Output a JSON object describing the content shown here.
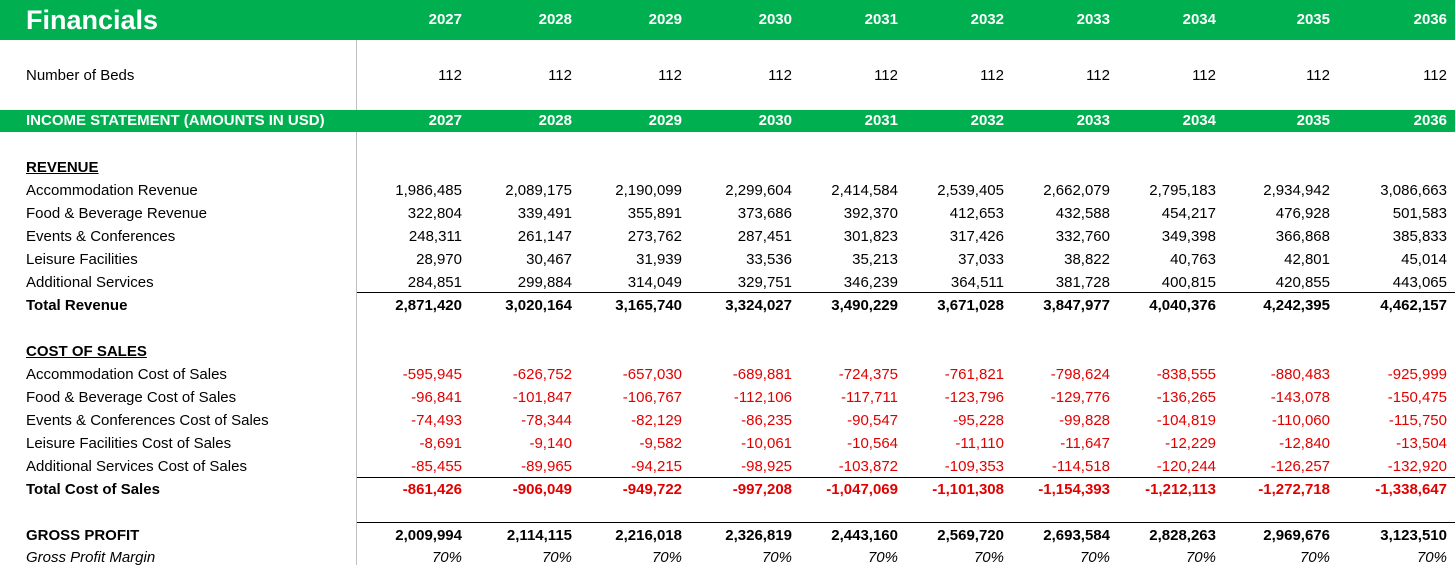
{
  "title": "Financials",
  "years": [
    "2027",
    "2028",
    "2029",
    "2030",
    "2031",
    "2032",
    "2033",
    "2034",
    "2035",
    "2036"
  ],
  "beds": {
    "label": "Number of Beds",
    "values": [
      "112",
      "112",
      "112",
      "112",
      "112",
      "112",
      "112",
      "112",
      "112",
      "112"
    ]
  },
  "income_header": "INCOME STATEMENT (AMOUNTS IN USD)",
  "revenue": {
    "heading": "REVENUE",
    "rows": [
      {
        "label": "Accommodation Revenue",
        "values": [
          "1,986,485",
          "2,089,175",
          "2,190,099",
          "2,299,604",
          "2,414,584",
          "2,539,405",
          "2,662,079",
          "2,795,183",
          "2,934,942",
          "3,086,663"
        ]
      },
      {
        "label": "Food & Beverage Revenue",
        "values": [
          "322,804",
          "339,491",
          "355,891",
          "373,686",
          "392,370",
          "412,653",
          "432,588",
          "454,217",
          "476,928",
          "501,583"
        ]
      },
      {
        "label": "Events & Conferences",
        "values": [
          "248,311",
          "261,147",
          "273,762",
          "287,451",
          "301,823",
          "317,426",
          "332,760",
          "349,398",
          "366,868",
          "385,833"
        ]
      },
      {
        "label": "Leisure Facilities",
        "values": [
          "28,970",
          "30,467",
          "31,939",
          "33,536",
          "35,213",
          "37,033",
          "38,822",
          "40,763",
          "42,801",
          "45,014"
        ]
      },
      {
        "label": "Additional Services",
        "values": [
          "284,851",
          "299,884",
          "314,049",
          "329,751",
          "346,239",
          "364,511",
          "381,728",
          "400,815",
          "420,855",
          "443,065"
        ]
      }
    ],
    "total": {
      "label": "Total Revenue",
      "values": [
        "2,871,420",
        "3,020,164",
        "3,165,740",
        "3,324,027",
        "3,490,229",
        "3,671,028",
        "3,847,977",
        "4,040,376",
        "4,242,395",
        "4,462,157"
      ]
    }
  },
  "cost_of_sales": {
    "heading": "COST OF SALES",
    "rows": [
      {
        "label": "Accommodation Cost of Sales",
        "values": [
          "-595,945",
          "-626,752",
          "-657,030",
          "-689,881",
          "-724,375",
          "-761,821",
          "-798,624",
          "-838,555",
          "-880,483",
          "-925,999"
        ]
      },
      {
        "label": "Food & Beverage Cost of Sales",
        "values": [
          "-96,841",
          "-101,847",
          "-106,767",
          "-112,106",
          "-117,711",
          "-123,796",
          "-129,776",
          "-136,265",
          "-143,078",
          "-150,475"
        ]
      },
      {
        "label": "Events & Conferences Cost of Sales",
        "values": [
          "-74,493",
          "-78,344",
          "-82,129",
          "-86,235",
          "-90,547",
          "-95,228",
          "-99,828",
          "-104,819",
          "-110,060",
          "-115,750"
        ]
      },
      {
        "label": "Leisure Facilities Cost of Sales",
        "values": [
          "-8,691",
          "-9,140",
          "-9,582",
          "-10,061",
          "-10,564",
          "-11,110",
          "-11,647",
          "-12,229",
          "-12,840",
          "-13,504"
        ]
      },
      {
        "label": "Additional Services Cost of Sales",
        "values": [
          "-85,455",
          "-89,965",
          "-94,215",
          "-98,925",
          "-103,872",
          "-109,353",
          "-114,518",
          "-120,244",
          "-126,257",
          "-132,920"
        ]
      }
    ],
    "total": {
      "label": "Total Cost of Sales",
      "values": [
        "-861,426",
        "-906,049",
        "-949,722",
        "-997,208",
        "-1,047,069",
        "-1,101,308",
        "-1,154,393",
        "-1,212,113",
        "-1,272,718",
        "-1,338,647"
      ]
    }
  },
  "gross_profit": {
    "label": "GROSS PROFIT",
    "values": [
      "2,009,994",
      "2,114,115",
      "2,216,018",
      "2,326,819",
      "2,443,160",
      "2,569,720",
      "2,693,584",
      "2,828,263",
      "2,969,676",
      "3,123,510"
    ]
  },
  "gross_margin": {
    "label": "Gross Profit Margin",
    "values": [
      "70%",
      "70%",
      "70%",
      "70%",
      "70%",
      "70%",
      "70%",
      "70%",
      "70%",
      "70%"
    ]
  },
  "colors": {
    "band": "#00b050",
    "negative": "#e00000"
  }
}
